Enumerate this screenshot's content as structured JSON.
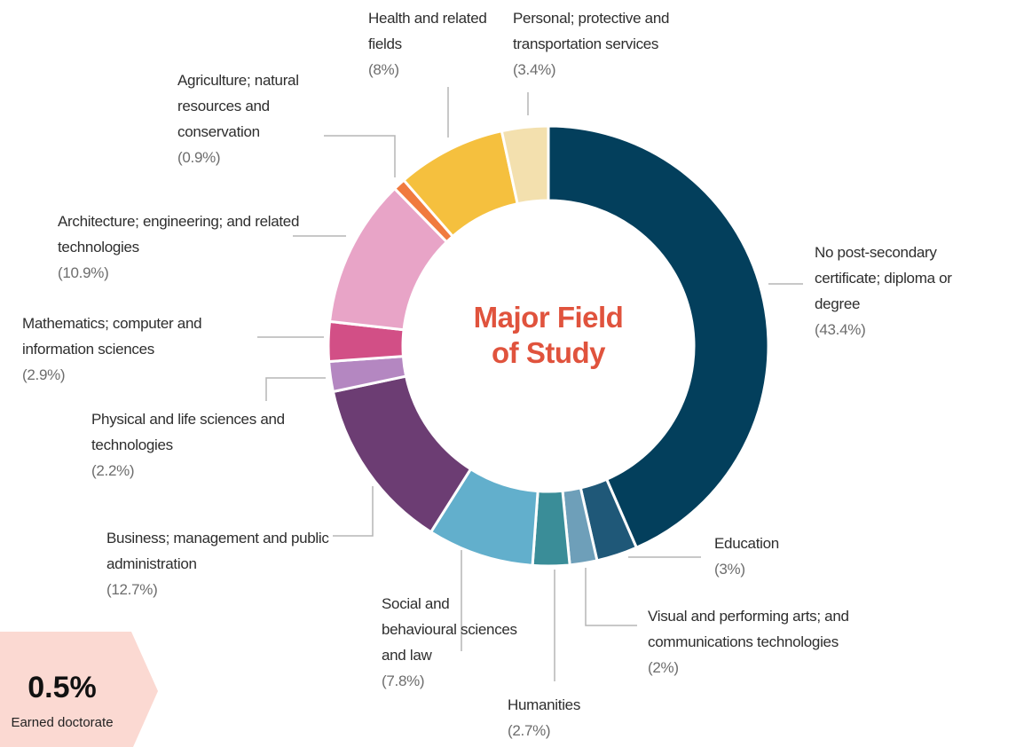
{
  "chart_data": {
    "type": "donut",
    "title": "Major Field of Study",
    "categories": [
      "No post-secondary certificate; diploma or degree",
      "Education",
      "Visual and performing arts; and communications technologies",
      "Humanities",
      "Social and behavioural sciences and law",
      "Business; management and public administration",
      "Physical and life sciences and technologies",
      "Mathematics; computer and information sciences",
      "Architecture; engineering; and related technologies",
      "Agriculture; natural resources and conservation",
      "Health and related fields",
      "Personal; protective and transportation services"
    ],
    "values": [
      43.4,
      3,
      2,
      2.7,
      7.8,
      12.7,
      2.2,
      2.9,
      10.9,
      0.9,
      8,
      3.4
    ],
    "value_labels": [
      "(43.4%)",
      "(3%)",
      "(2%)",
      "(2.7%)",
      "(7.8%)",
      "(12.7%)",
      "(2.2%)",
      "(2.9%)",
      "(10.9%)",
      "(0.9%)",
      "(8%)",
      "(3.4%)"
    ],
    "colors": [
      "#033f5c",
      "#1f5878",
      "#6e9fb9",
      "#3a8d98",
      "#62afcc",
      "#6c3d73",
      "#b487c1",
      "#d24f86",
      "#e8a4c7",
      "#f07a3e",
      "#f5c03e",
      "#f3e0ae"
    ],
    "annotation": {
      "value": "0.5%",
      "label": "Earned doctorate"
    }
  }
}
